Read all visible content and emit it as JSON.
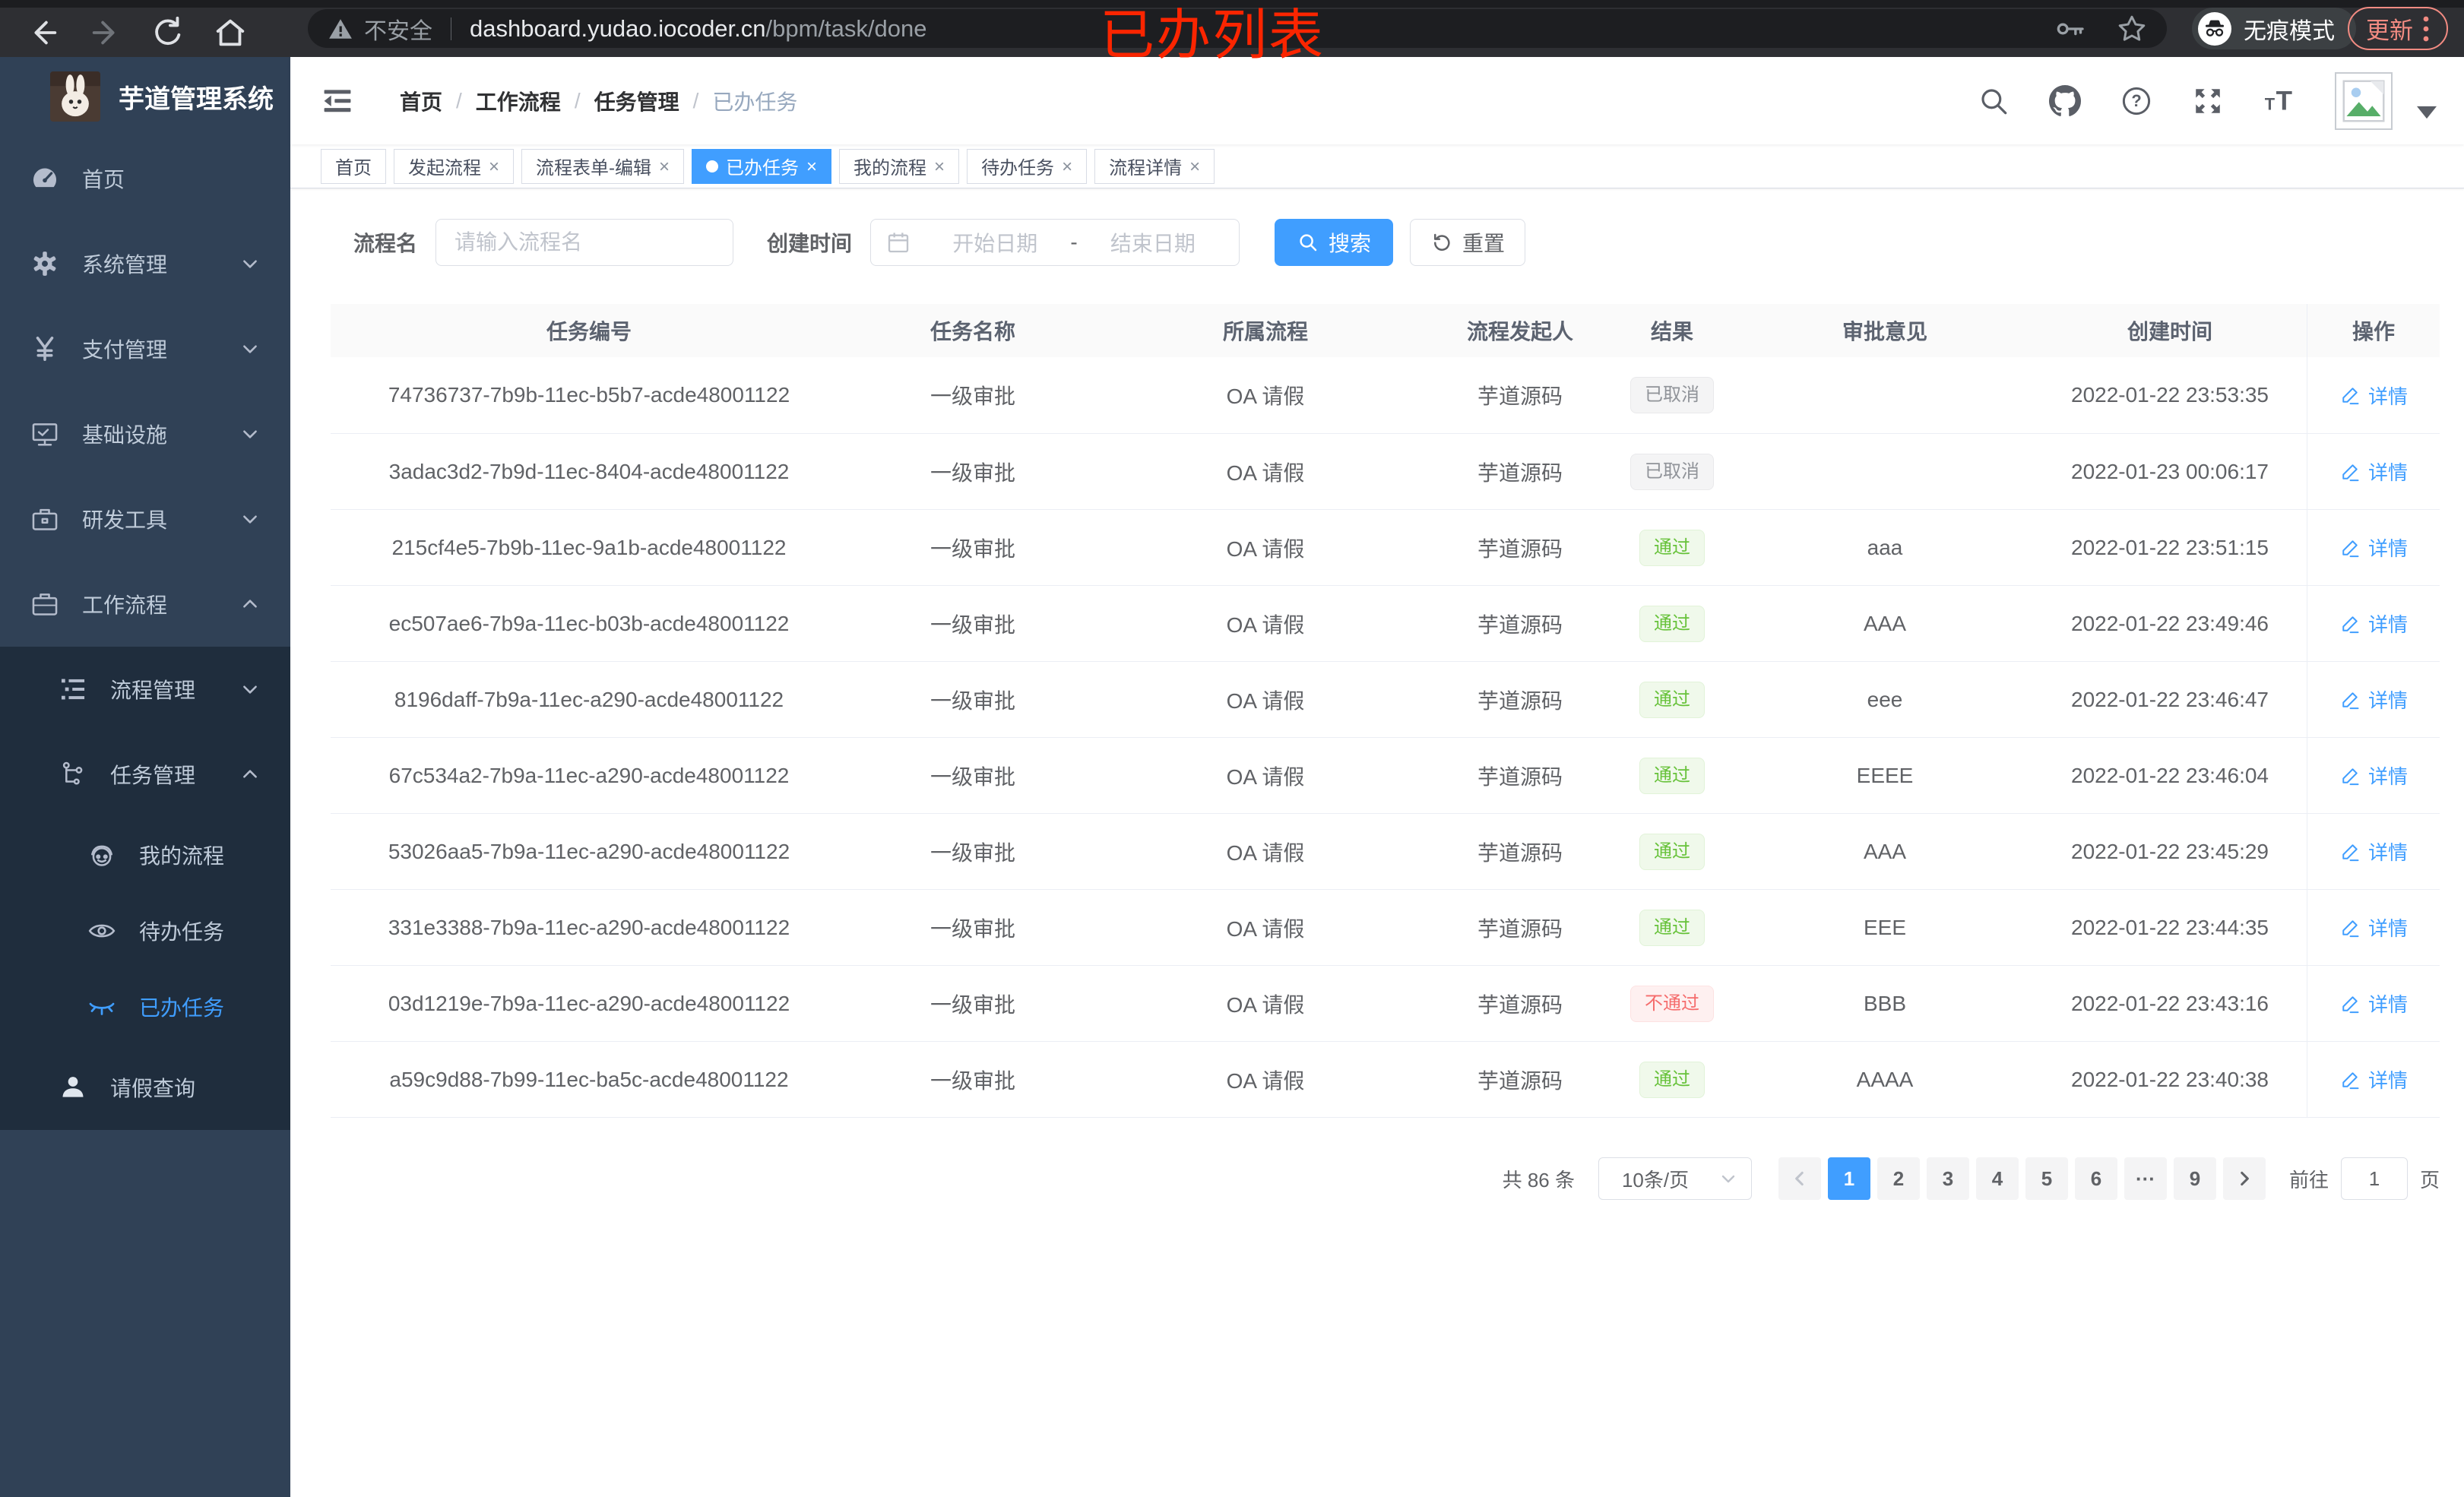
{
  "browser": {
    "security_label": "不安全",
    "url_host": "dashboard.yudao.iocoder.cn",
    "url_path": "/bpm/task/done",
    "incognito_label": "无痕模式",
    "update_label": "更新"
  },
  "annotation": "已办列表",
  "sidebar": {
    "app_title": "芋道管理系统",
    "items": [
      {
        "label": "首页",
        "icon": "dashboard-icon",
        "level": 1,
        "chevron": null,
        "sub": false,
        "active": false
      },
      {
        "label": "系统管理",
        "icon": "gear-icon",
        "level": 1,
        "chevron": "down",
        "sub": false,
        "active": false
      },
      {
        "label": "支付管理",
        "icon": "yen-icon",
        "level": 1,
        "chevron": "down",
        "sub": false,
        "active": false
      },
      {
        "label": "基础设施",
        "icon": "monitor-icon",
        "level": 1,
        "chevron": "down",
        "sub": false,
        "active": false
      },
      {
        "label": "研发工具",
        "icon": "toolbox-icon",
        "level": 1,
        "chevron": "down",
        "sub": false,
        "active": false
      },
      {
        "label": "工作流程",
        "icon": "briefcase-icon",
        "level": 1,
        "chevron": "up",
        "sub": false,
        "active": false
      },
      {
        "label": "流程管理",
        "icon": "list-tree-icon",
        "level": 2,
        "chevron": "down",
        "sub": true,
        "active": false
      },
      {
        "label": "任务管理",
        "icon": "flow-icon",
        "level": 2,
        "chevron": "up",
        "sub": true,
        "active": false
      },
      {
        "label": "我的流程",
        "icon": "face-icon",
        "level": 3,
        "chevron": null,
        "sub": true,
        "active": false
      },
      {
        "label": "待办任务",
        "icon": "eye-icon",
        "level": 3,
        "chevron": null,
        "sub": true,
        "active": false
      },
      {
        "label": "已办任务",
        "icon": "eye-closed-icon",
        "level": 3,
        "chevron": null,
        "sub": true,
        "active": true
      },
      {
        "label": "请假查询",
        "icon": "user-icon",
        "level": 2,
        "chevron": null,
        "sub": true,
        "active": false,
        "bright": true
      }
    ]
  },
  "navbar": {
    "breadcrumbs": [
      "首页",
      "工作流程",
      "任务管理",
      "已办任务"
    ],
    "icons": [
      "search-icon",
      "github-icon",
      "question-icon",
      "fullscreen-icon",
      "font-size-icon"
    ]
  },
  "tabs": [
    {
      "label": "首页",
      "closable": false,
      "active": false
    },
    {
      "label": "发起流程",
      "closable": true,
      "active": false
    },
    {
      "label": "流程表单-编辑",
      "closable": true,
      "active": false
    },
    {
      "label": "已办任务",
      "closable": true,
      "active": true
    },
    {
      "label": "我的流程",
      "closable": true,
      "active": false
    },
    {
      "label": "待办任务",
      "closable": true,
      "active": false
    },
    {
      "label": "流程详情",
      "closable": true,
      "active": false
    }
  ],
  "filters": {
    "name_label": "流程名",
    "name_placeholder": "请输入流程名",
    "time_label": "创建时间",
    "start_placeholder": "开始日期",
    "range_separator": "-",
    "end_placeholder": "结束日期",
    "search_label": "搜索",
    "reset_label": "重置"
  },
  "table": {
    "columns": [
      "任务编号",
      "任务名称",
      "所属流程",
      "流程发起人",
      "结果",
      "审批意见",
      "创建时间",
      "操作"
    ],
    "action_label": "详情",
    "rows": [
      {
        "id": "74736737-7b9b-11ec-b5b7-acde48001122",
        "name": "一级审批",
        "process": "OA 请假",
        "starter": "芋道源码",
        "result": "已取消",
        "result_type": "info",
        "opinion": "",
        "created": "2022-01-22 23:53:35"
      },
      {
        "id": "3adac3d2-7b9d-11ec-8404-acde48001122",
        "name": "一级审批",
        "process": "OA 请假",
        "starter": "芋道源码",
        "result": "已取消",
        "result_type": "info",
        "opinion": "",
        "created": "2022-01-23 00:06:17"
      },
      {
        "id": "215cf4e5-7b9b-11ec-9a1b-acde48001122",
        "name": "一级审批",
        "process": "OA 请假",
        "starter": "芋道源码",
        "result": "通过",
        "result_type": "success",
        "opinion": "aaa",
        "created": "2022-01-22 23:51:15"
      },
      {
        "id": "ec507ae6-7b9a-11ec-b03b-acde48001122",
        "name": "一级审批",
        "process": "OA 请假",
        "starter": "芋道源码",
        "result": "通过",
        "result_type": "success",
        "opinion": "AAA",
        "created": "2022-01-22 23:49:46"
      },
      {
        "id": "8196daff-7b9a-11ec-a290-acde48001122",
        "name": "一级审批",
        "process": "OA 请假",
        "starter": "芋道源码",
        "result": "通过",
        "result_type": "success",
        "opinion": "eee",
        "created": "2022-01-22 23:46:47"
      },
      {
        "id": "67c534a2-7b9a-11ec-a290-acde48001122",
        "name": "一级审批",
        "process": "OA 请假",
        "starter": "芋道源码",
        "result": "通过",
        "result_type": "success",
        "opinion": "EEEE",
        "created": "2022-01-22 23:46:04"
      },
      {
        "id": "53026aa5-7b9a-11ec-a290-acde48001122",
        "name": "一级审批",
        "process": "OA 请假",
        "starter": "芋道源码",
        "result": "通过",
        "result_type": "success",
        "opinion": "AAA",
        "created": "2022-01-22 23:45:29"
      },
      {
        "id": "331e3388-7b9a-11ec-a290-acde48001122",
        "name": "一级审批",
        "process": "OA 请假",
        "starter": "芋道源码",
        "result": "通过",
        "result_type": "success",
        "opinion": "EEE",
        "created": "2022-01-22 23:44:35"
      },
      {
        "id": "03d1219e-7b9a-11ec-a290-acde48001122",
        "name": "一级审批",
        "process": "OA 请假",
        "starter": "芋道源码",
        "result": "不通过",
        "result_type": "danger",
        "opinion": "BBB",
        "created": "2022-01-22 23:43:16"
      },
      {
        "id": "a59c9d88-7b99-11ec-ba5c-acde48001122",
        "name": "一级审批",
        "process": "OA 请假",
        "starter": "芋道源码",
        "result": "通过",
        "result_type": "success",
        "opinion": "AAAA",
        "created": "2022-01-22 23:40:38"
      }
    ]
  },
  "pagination": {
    "total_label": "共 86 条",
    "page_size": "10条/页",
    "pages": [
      "1",
      "2",
      "3",
      "4",
      "5",
      "6",
      "···",
      "9"
    ],
    "active_page": "1",
    "goto_label": "前往",
    "goto_value": "1",
    "page_label": "页"
  },
  "colors": {
    "accent": "#409eff",
    "sidebar_bg": "#304156",
    "sidebar_sub_bg": "#1f2d3d",
    "success": "#67c23a",
    "danger": "#f56c6c",
    "info": "#909399",
    "annotation_red": "#fb2500"
  }
}
